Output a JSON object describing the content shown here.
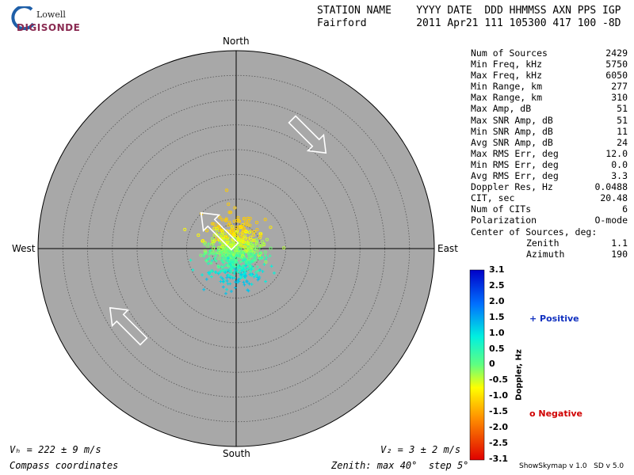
{
  "header": {
    "labels": "STATION NAME    YYYY DATE  DDD HHMMSS AXN PPS IGP",
    "values": "Fairford        2011 Apr21 111 105300 417 100 -8D"
  },
  "logo": {
    "line1": "Lowell",
    "line2": "DIGISONDE"
  },
  "stats": [
    {
      "label": "Num of Sources",
      "value": "2429"
    },
    {
      "label": "Min Freq, kHz",
      "value": "5750"
    },
    {
      "label": "Max Freq, kHz",
      "value": "6050"
    },
    {
      "label": "Min Range, km",
      "value": "277"
    },
    {
      "label": "Max Range, km",
      "value": "310"
    },
    {
      "label": "Max Amp, dB",
      "value": "51"
    },
    {
      "label": "Max SNR Amp, dB",
      "value": "51"
    },
    {
      "label": "Min SNR Amp, dB",
      "value": "11"
    },
    {
      "label": "Avg SNR Amp, dB",
      "value": "24"
    },
    {
      "label": "Max RMS Err, deg",
      "value": "12.0"
    },
    {
      "label": "Min RMS Err, deg",
      "value": "0.0"
    },
    {
      "label": "Avg RMS Err, deg",
      "value": "3.3"
    },
    {
      "label": "Doppler Res, Hz",
      "value": "0.0488"
    },
    {
      "label": "CIT, sec",
      "value": "20.48"
    },
    {
      "label": "Num of CITs",
      "value": "6"
    },
    {
      "label": "Polarization",
      "value": "O-mode"
    }
  ],
  "center": {
    "label": "Center of Sources, deg:",
    "zenith_label": "Zenith",
    "zenith": "1.1",
    "azimuth_label": "Azimuth",
    "azimuth": "190"
  },
  "compass": {
    "north": "North",
    "south": "South",
    "east": "East",
    "west": "West"
  },
  "footer": {
    "vh": "Vₕ = 222 ± 9 m/s",
    "vz": "V₂ = 3 ± 2 m/s",
    "coords": "Compass coordinates",
    "zenith": "Zenith: max 40°  step 5°",
    "version": "ShowSkymap v 1.0   SD v 5.0"
  },
  "legend": {
    "positive": "+ Positive",
    "negative": "o Negative"
  },
  "chart_data": {
    "type": "scatter",
    "projection": "polar-skymap",
    "zenith_max_deg": 40,
    "zenith_step_deg": 5,
    "colorbar": {
      "label": "Doppler, Hz",
      "range": [
        -3.1,
        3.1
      ],
      "ticks": [
        "3.1",
        "2.5",
        "2.0",
        "1.5",
        "1.0",
        "0.5",
        "0",
        "-0.5",
        "-1.0",
        "-1.5",
        "-2.0",
        "-2.5",
        "-3.1"
      ]
    },
    "source_cloud": {
      "count": 2429,
      "center_zenith_deg": 1.1,
      "center_azimuth_deg": 190,
      "spread_deg": 4,
      "doppler_range_hz": [
        -1.2,
        1.3
      ]
    },
    "velocity_arrows_azimuth_deg": [
      135,
      315,
      315
    ]
  }
}
